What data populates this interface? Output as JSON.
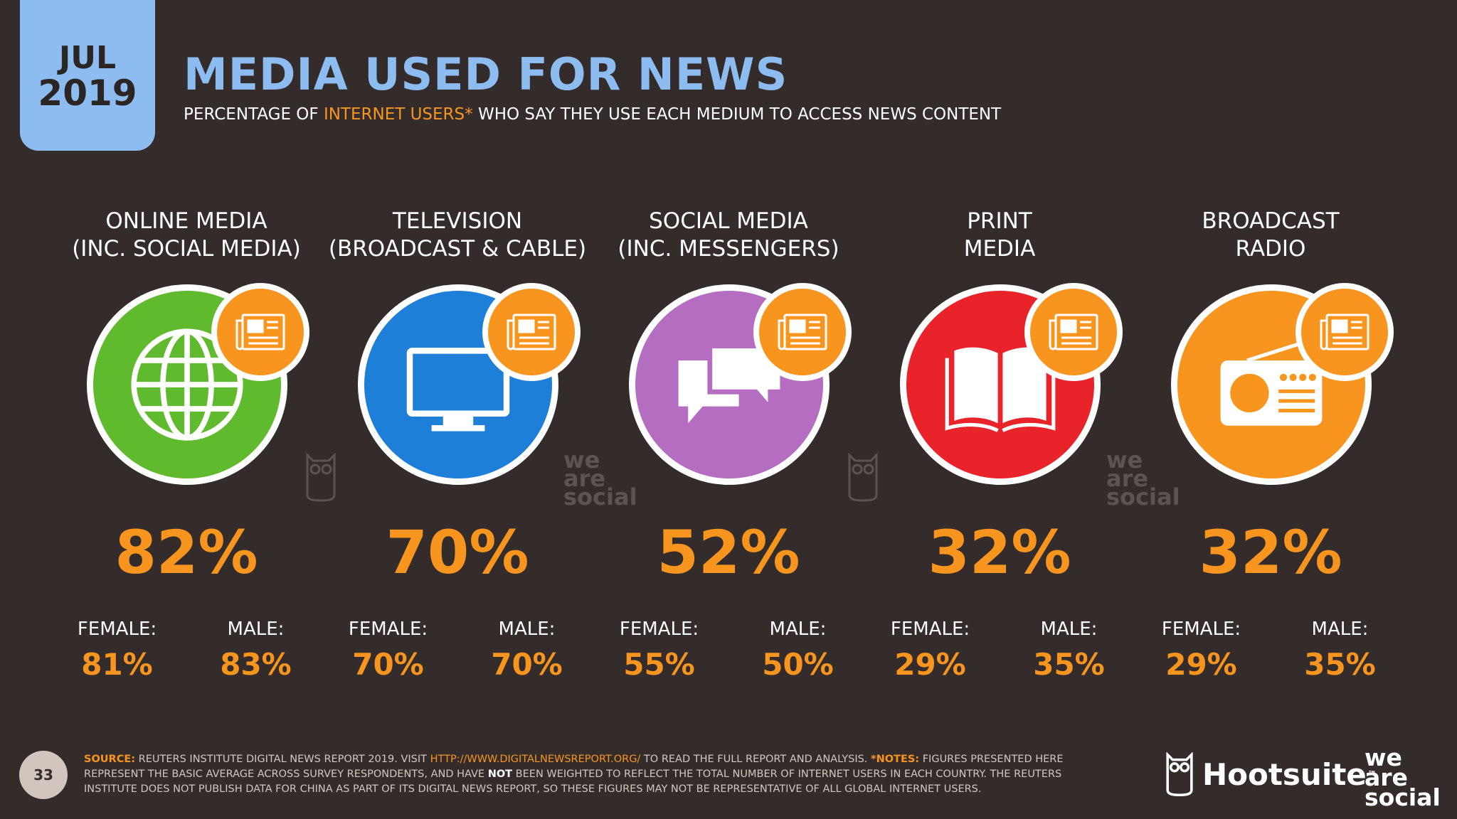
{
  "header": {
    "month": "JUL",
    "year": "2019",
    "title": "MEDIA USED FOR NEWS",
    "subtitle_pre": "PERCENTAGE OF ",
    "subtitle_highlight": "INTERNET USERS*",
    "subtitle_post": " WHO SAY THEY USE EACH MEDIUM TO ACCESS NEWS CONTENT"
  },
  "media": [
    {
      "label": "ONLINE MEDIA\n(INC. SOCIAL MEDIA)",
      "value": "82%",
      "female_label": "FEMALE:",
      "female_value": "81%",
      "male_label": "MALE:",
      "male_value": "83%",
      "icon": "globe-icon",
      "color": "#5fba2d"
    },
    {
      "label": "TELEVISION\n(BROADCAST & CABLE)",
      "value": "70%",
      "female_label": "FEMALE:",
      "female_value": "70%",
      "male_label": "MALE:",
      "male_value": "70%",
      "icon": "television-icon",
      "color": "#1e7fd9"
    },
    {
      "label": "SOCIAL MEDIA\n(INC. MESSENGERS)",
      "value": "52%",
      "female_label": "FEMALE:",
      "female_value": "55%",
      "male_label": "MALE:",
      "male_value": "50%",
      "icon": "chat-bubbles-icon",
      "color": "#b56dc2"
    },
    {
      "label": "PRINT\nMEDIA",
      "value": "32%",
      "female_label": "FEMALE:",
      "female_value": "29%",
      "male_label": "MALE:",
      "male_value": "35%",
      "icon": "open-book-icon",
      "color": "#e8232a"
    },
    {
      "label": "BROADCAST\nRADIO",
      "value": "32%",
      "female_label": "FEMALE:",
      "female_value": "29%",
      "male_label": "MALE:",
      "male_value": "35%",
      "icon": "radio-icon",
      "color": "#f7951f"
    }
  ],
  "accent_color": "#f7951f",
  "watermark": {
    "line1": "we",
    "line2": "are",
    "line3": "social"
  },
  "footer": {
    "page_number": "33",
    "source_label": "SOURCE:",
    "source_text": " REUTERS INSTITUTE DIGITAL NEWS REPORT 2019. VISIT ",
    "source_link": "HTTP://WWW.DIGITALNEWSREPORT.ORG/",
    "source_text2": " TO READ THE FULL REPORT AND ANALYSIS. ",
    "notes_label": "*NOTES:",
    "notes_text": " FIGURES PRESENTED HERE REPRESENT THE BASIC AVERAGE ACROSS SURVEY RESPONDENTS, AND HAVE ",
    "notes_bold": "NOT",
    "notes_text2": " BEEN WEIGHTED TO REFLECT THE TOTAL NUMBER OF INTERNET USERS IN EACH COUNTRY. THE REUTERS INSTITUTE DOES NOT PUBLISH DATA FOR CHINA AS PART OF ITS DIGITAL NEWS REPORT, SO THESE FIGURES MAY NOT BE REPRESENTATIVE OF ALL GLOBAL INTERNET USERS.",
    "hootsuite": "Hootsuite",
    "hootsuite_tm": "™",
    "was_line1": "we",
    "was_line2": "are",
    "was_line3": "social"
  }
}
